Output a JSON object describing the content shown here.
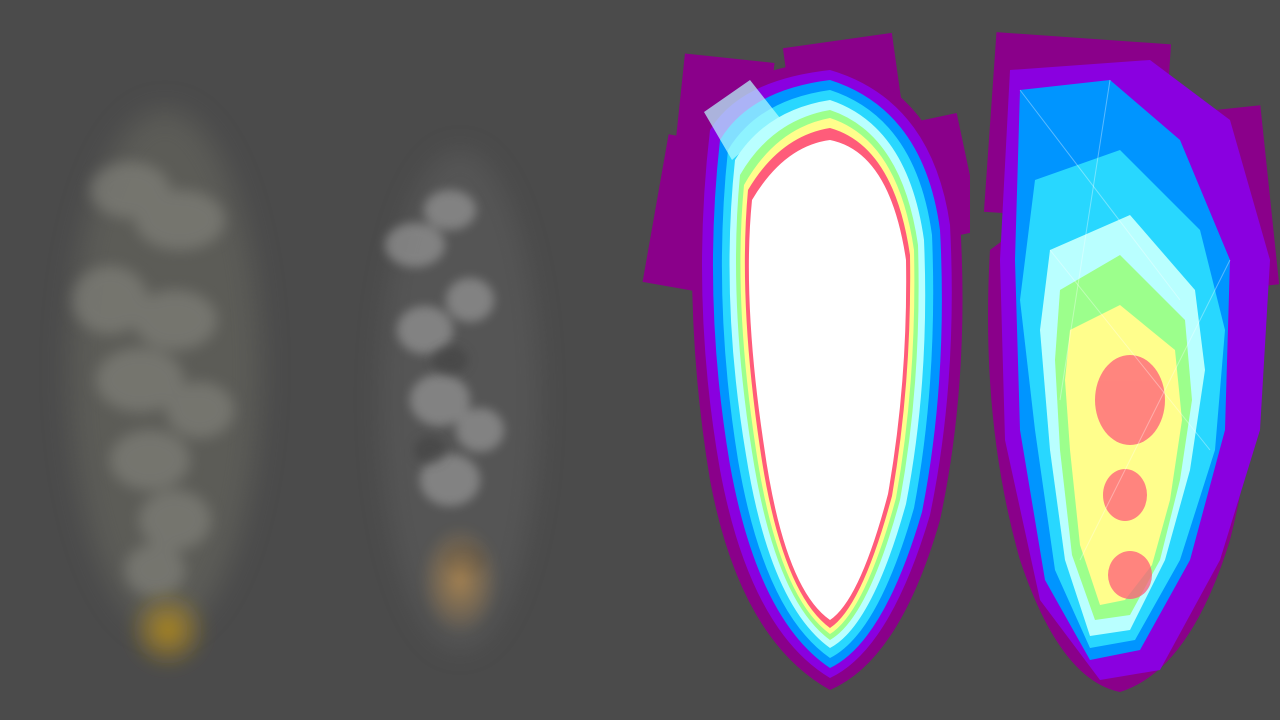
{
  "scene": {
    "background": "#4b4b4b",
    "panels": [
      {
        "id": "soft-particles-smoke",
        "smoke_tint": "#9a9a8a",
        "ember_tint": "#b48c1e"
      },
      {
        "id": "hard-particles-smoke",
        "smoke_tint": "#a8a8a8",
        "ember_tint": "#c89650"
      },
      {
        "id": "overdraw-heatmap-dense",
        "palette": [
          "#8a008a",
          "#8a00e0",
          "#0095ff",
          "#28d7ff",
          "#b9ffff",
          "#9cff8c",
          "#fffe8c",
          "#ff5c7a",
          "#ffffff"
        ]
      },
      {
        "id": "overdraw-heatmap-sparse",
        "palette": [
          "#8a008a",
          "#8a00e0",
          "#0095ff",
          "#28d7ff",
          "#b9ffff",
          "#9cff8c",
          "#fffe8c",
          "#ff5c7a"
        ]
      }
    ]
  }
}
